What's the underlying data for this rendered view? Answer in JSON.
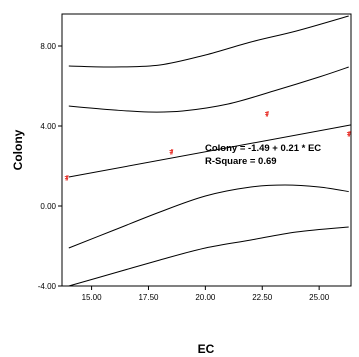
{
  "chart_data": {
    "type": "scatter",
    "xlabel": "EC",
    "ylabel": "Colony",
    "xlim": [
      13.7,
      26.4
    ],
    "ylim": [
      -4.0,
      9.6
    ],
    "x_ticks": [
      "15.00",
      "17.50",
      "20.00",
      "22.50",
      "25.00"
    ],
    "x_tick_values": [
      15.0,
      17.5,
      20.0,
      22.5,
      25.0
    ],
    "y_ticks": [
      "-4.00",
      "0.00",
      "4.00",
      "8.00"
    ],
    "y_tick_values": [
      -4.0,
      0.0,
      4.0,
      8.0
    ],
    "grid": false,
    "point_color": "#e8312a",
    "line_color": "#000000",
    "points": [
      {
        "x": 13.9,
        "y": 1.4
      },
      {
        "x": 18.5,
        "y": 2.7
      },
      {
        "x": 22.7,
        "y": 4.6
      },
      {
        "x": 26.3,
        "y": 3.6
      }
    ],
    "fit": {
      "intercept": -1.49,
      "slope": 0.21
    },
    "bands": [
      {
        "name": "upper prediction",
        "x": [
          14.0,
          16.0,
          18.0,
          20.0,
          22.0,
          24.0,
          26.3
        ],
        "y": [
          7.0,
          6.95,
          7.05,
          7.55,
          8.2,
          8.75,
          9.5
        ]
      },
      {
        "name": "upper confidence",
        "x": [
          14.0,
          16.0,
          17.5,
          19.0,
          21.0,
          23.0,
          25.0,
          26.3
        ],
        "y": [
          5.0,
          4.8,
          4.7,
          4.75,
          5.1,
          5.75,
          6.45,
          6.95
        ]
      },
      {
        "name": "lower confidence",
        "x": [
          14.0,
          16.0,
          18.0,
          20.0,
          22.0,
          23.5,
          25.0,
          26.3
        ],
        "y": [
          -2.1,
          -1.2,
          -0.3,
          0.5,
          0.95,
          1.05,
          0.95,
          0.72
        ]
      },
      {
        "name": "lower prediction",
        "x": [
          14.0,
          16.0,
          18.0,
          20.0,
          22.0,
          24.0,
          26.3
        ],
        "y": [
          -4.0,
          -3.35,
          -2.7,
          -2.1,
          -1.7,
          -1.3,
          -1.05
        ]
      }
    ],
    "annotations": [
      {
        "text": "Colony = -1.49 + 0.21 * EC"
      },
      {
        "text": "R-Square = 0.69"
      }
    ]
  }
}
